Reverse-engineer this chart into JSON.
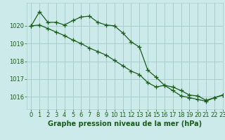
{
  "title": "Graphe pression niveau de la mer (hPa)",
  "bg_color": "#cceaea",
  "grid_color": "#aacccc",
  "line_color": "#1a5c1a",
  "xlim": [
    -0.5,
    23
  ],
  "ylim": [
    1015.3,
    1021.3
  ],
  "yticks": [
    1016,
    1017,
    1018,
    1019,
    1020
  ],
  "xticks": [
    0,
    1,
    2,
    3,
    4,
    5,
    6,
    7,
    8,
    9,
    10,
    11,
    12,
    13,
    14,
    15,
    16,
    17,
    18,
    19,
    20,
    21,
    22,
    23
  ],
  "xlabel_fontsize": 7,
  "tick_fontsize": 6,
  "series1_x": [
    0,
    1,
    2,
    3,
    4,
    5,
    6,
    7,
    8,
    9,
    10,
    11,
    12,
    13,
    14,
    15,
    16,
    17,
    18,
    19,
    20,
    21,
    22,
    23
  ],
  "series1_y": [
    1020.0,
    1020.8,
    1020.2,
    1020.2,
    1020.05,
    1020.3,
    1020.5,
    1020.55,
    1020.2,
    1020.05,
    1020.0,
    1019.6,
    1019.1,
    1018.8,
    1017.5,
    1017.1,
    1016.65,
    1016.55,
    1016.35,
    1016.1,
    1016.05,
    1015.8,
    1015.95,
    1016.1
  ],
  "series2_x": [
    0,
    1,
    2,
    3,
    4,
    5,
    6,
    7,
    8,
    9,
    10,
    11,
    12,
    13,
    14,
    15,
    16,
    17,
    18,
    19,
    20,
    21,
    22,
    23
  ],
  "series2_y": [
    1020.0,
    1020.05,
    1019.85,
    1019.65,
    1019.45,
    1019.2,
    1019.0,
    1018.75,
    1018.55,
    1018.35,
    1018.05,
    1017.75,
    1017.45,
    1017.25,
    1016.8,
    1016.55,
    1016.65,
    1016.35,
    1016.05,
    1015.95,
    1015.85,
    1015.75,
    1015.95,
    1016.1
  ]
}
